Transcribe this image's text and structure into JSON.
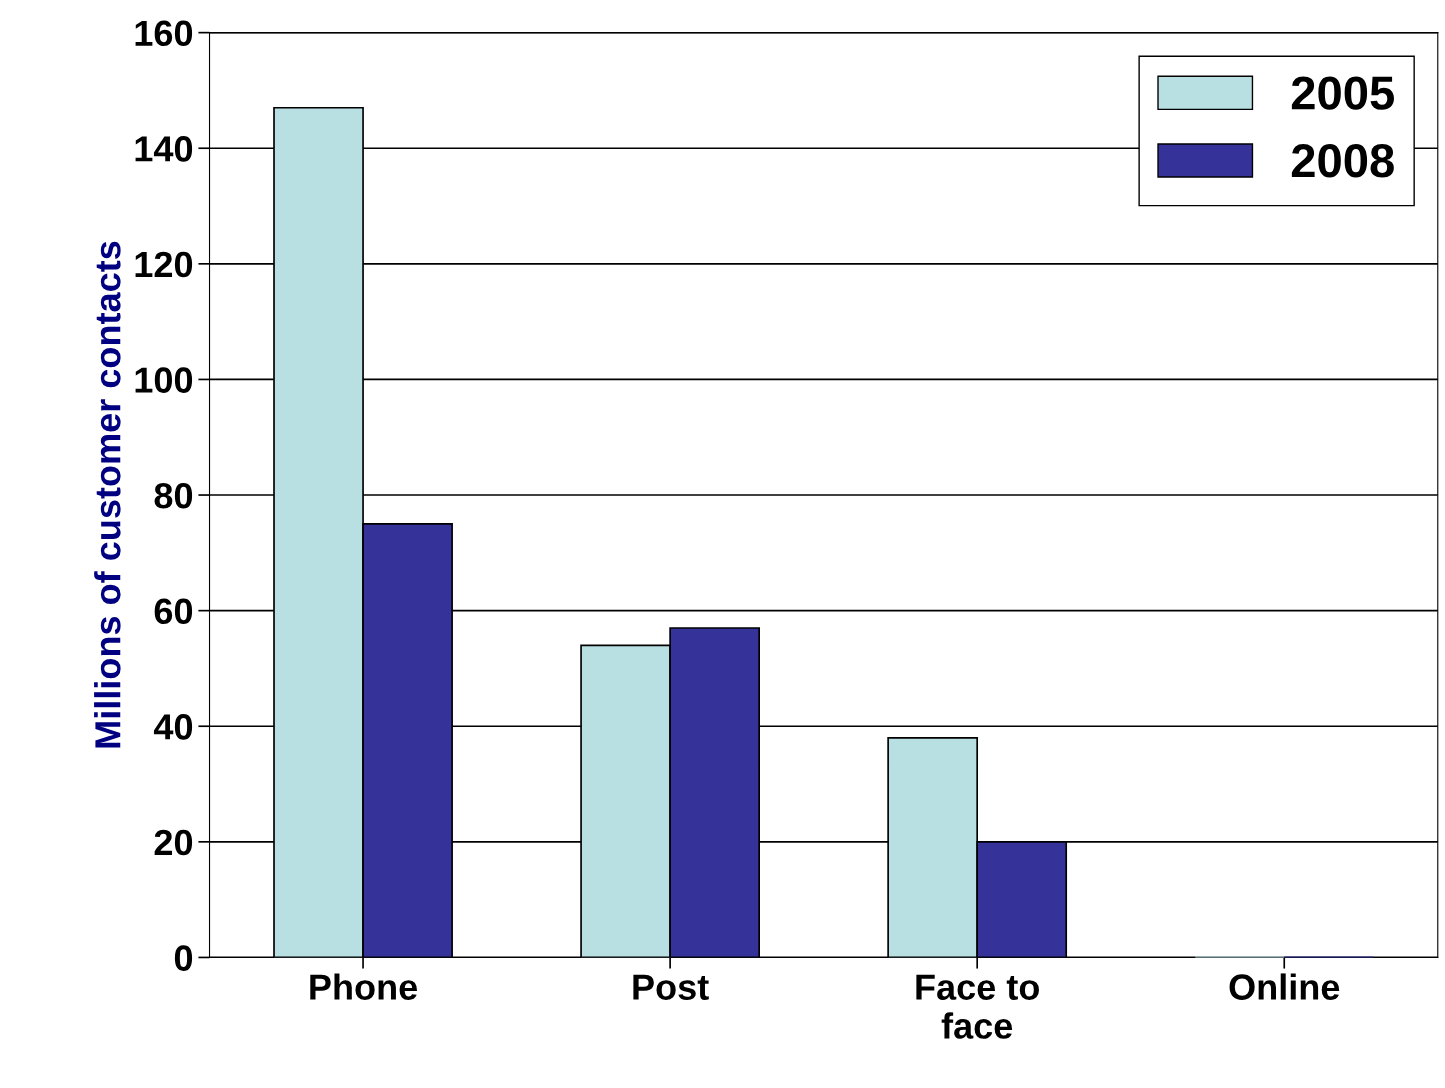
{
  "chart_data": {
    "type": "bar",
    "ylabel": "Millions of customer contacts",
    "categories": [
      "Phone",
      "Post",
      "Face to\nface",
      "Online"
    ],
    "series": [
      {
        "name": "2005",
        "color": "#b8e0e2",
        "values": [
          147,
          54,
          38,
          0
        ]
      },
      {
        "name": "2008",
        "color": "#35339a",
        "values": [
          75,
          57,
          20,
          0
        ]
      }
    ],
    "ylim": [
      0,
      160
    ],
    "yticks": [
      0,
      20,
      40,
      60,
      80,
      100,
      120,
      140,
      160
    ],
    "grid": "y",
    "legend": "top right"
  }
}
